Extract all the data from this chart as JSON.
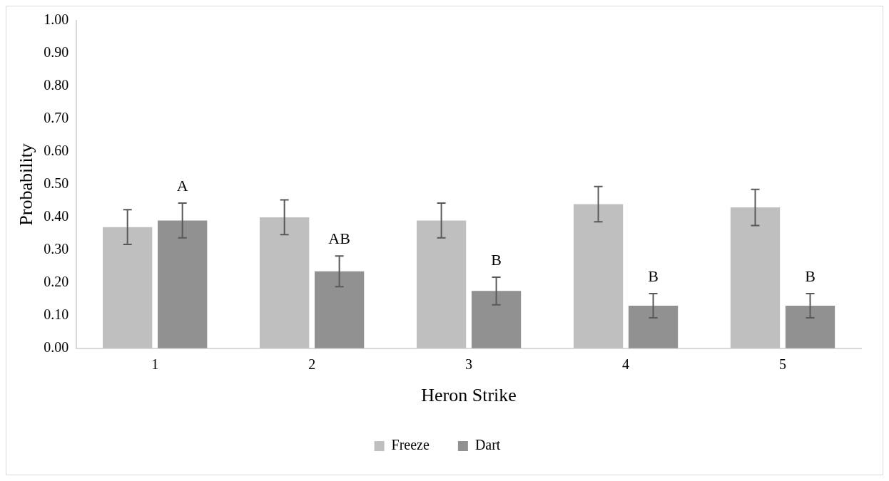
{
  "chart_data": {
    "type": "bar",
    "xlabel": "Heron Strike",
    "ylabel": "Probability",
    "categories": [
      "1",
      "2",
      "3",
      "4",
      "5"
    ],
    "series": [
      {
        "name": "Freeze",
        "color": "#bfbfbf",
        "values": [
          0.37,
          0.4,
          0.39,
          0.44,
          0.43
        ],
        "errors": [
          0.053,
          0.053,
          0.053,
          0.054,
          0.055
        ]
      },
      {
        "name": "Dart",
        "color": "#919191",
        "values": [
          0.39,
          0.235,
          0.175,
          0.13,
          0.13
        ],
        "errors": [
          0.053,
          0.047,
          0.042,
          0.037,
          0.037
        ]
      }
    ],
    "ylim": [
      0,
      1
    ],
    "yticks": [
      {
        "value": 0,
        "label": "0.00"
      },
      {
        "value": 0.1,
        "label": "0.10"
      },
      {
        "value": 0.2,
        "label": "0.20"
      },
      {
        "value": 0.3,
        "label": "0.30"
      },
      {
        "value": 0.4,
        "label": "0.40"
      },
      {
        "value": 0.5,
        "label": "0.50"
      },
      {
        "value": 0.6,
        "label": "0.60"
      },
      {
        "value": 0.7,
        "label": "0.70"
      },
      {
        "value": 0.8,
        "label": "0.80"
      },
      {
        "value": 0.9,
        "label": "0.90"
      },
      {
        "value": 1,
        "label": "1.00"
      }
    ],
    "annotations": [
      "A",
      "AB",
      "B",
      "B",
      "B"
    ],
    "grid": false,
    "legend": "bottom"
  }
}
